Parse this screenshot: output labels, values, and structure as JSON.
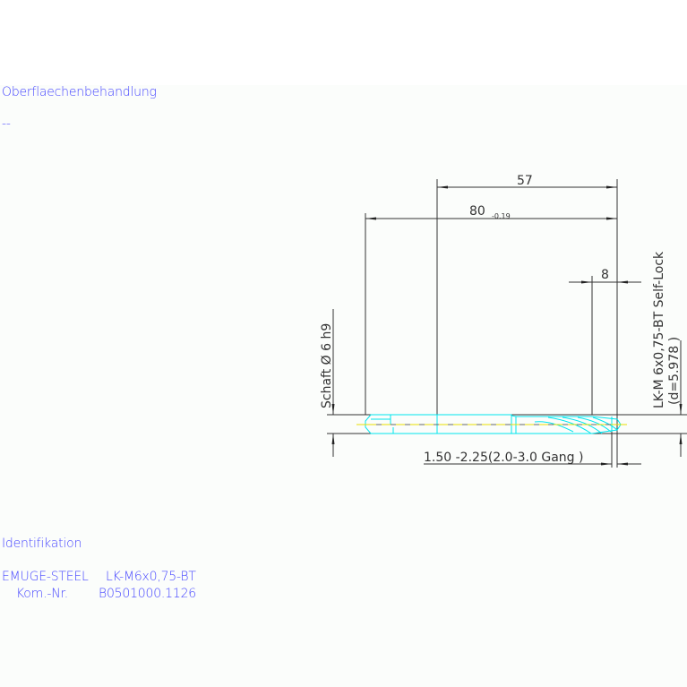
{
  "surface_treatment": {
    "label": "Oberflaechenbehandlung",
    "value": "--"
  },
  "identification": {
    "label": "Identifikation",
    "line1_left": "EMUGE-STEEL",
    "line1_right": "LK-M6x0,75-BT",
    "line2_left": "Kom.-Nr.",
    "line2_right": "B0501000.1126"
  },
  "drawing": {
    "dim_57": "57",
    "dim_80": "80",
    "dim_80_tol": "-0.19",
    "dim_8": "8",
    "shank_label": "Schaft Ø 6 h9",
    "thread_label": "LK-M 6x0,75-BT Self-Lock",
    "thread_d": "(d=5.978 )",
    "chamfer_label": "1.50 -2.25(2.0-3.0 Gang  )",
    "colors": {
      "tool": "#00e5ee",
      "axis": "#e8e000",
      "dims": "#333333",
      "text": "#4646ff"
    }
  }
}
